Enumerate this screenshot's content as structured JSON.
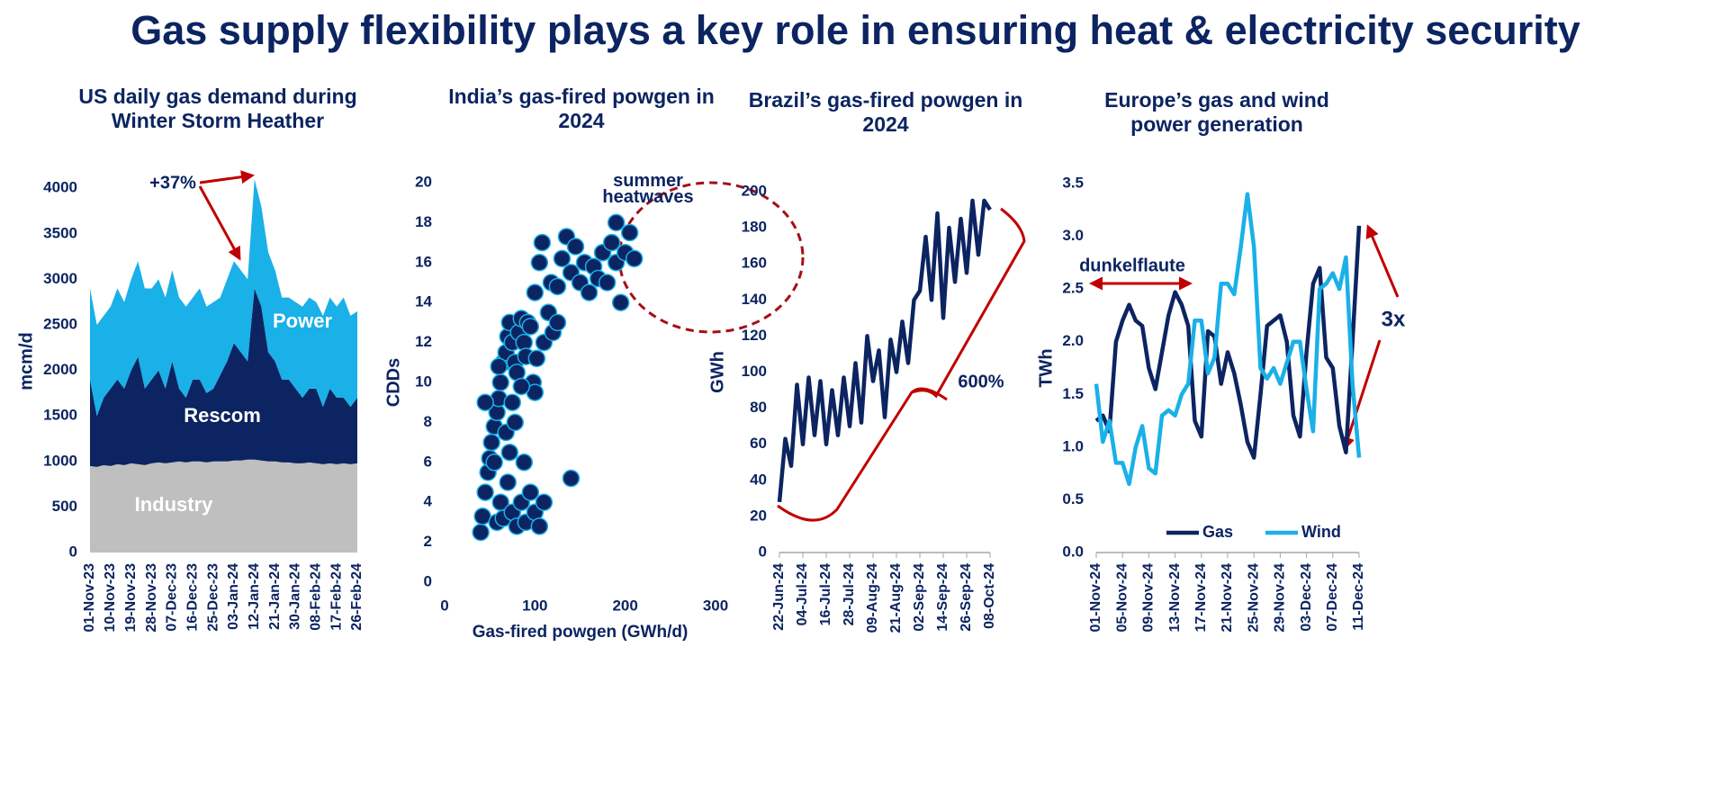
{
  "title": "Gas supply flexibility plays a key role in ensuring heat & electricity security",
  "chart_data": [
    {
      "type": "area",
      "title": "US daily gas demand during Winter Storm Heather",
      "y_label": "mcm/d",
      "categories": [
        "01-Nov-23",
        null,
        null,
        "10-Nov-23",
        null,
        null,
        "19-Nov-23",
        null,
        null,
        "28-Nov-23",
        null,
        null,
        "07-Dec-23",
        null,
        null,
        "16-Dec-23",
        null,
        null,
        "25-Dec-23",
        null,
        null,
        "03-Jan-24",
        null,
        null,
        "12-Jan-24",
        null,
        null,
        "21-Jan-24",
        null,
        null,
        "30-Jan-24",
        null,
        null,
        "08-Feb-24",
        null,
        null,
        "17-Feb-24",
        null,
        null,
        "26-Feb-24"
      ],
      "series": [
        {
          "name": "Industry",
          "color": "#bfbfbf",
          "values": [
            950,
            940,
            960,
            950,
            970,
            960,
            980,
            970,
            960,
            980,
            990,
            980,
            990,
            1000,
            990,
            1000,
            1000,
            990,
            1000,
            1000,
            1000,
            1010,
            1010,
            1020,
            1020,
            1010,
            1000,
            1000,
            990,
            990,
            980,
            980,
            990,
            980,
            970,
            980,
            970,
            980,
            970,
            980
          ]
        },
        {
          "name": "Rescom",
          "color": "#0c2461",
          "values": [
            950,
            560,
            740,
            850,
            930,
            840,
            1020,
            1180,
            840,
            920,
            1010,
            820,
            1110,
            800,
            710,
            900,
            900,
            760,
            800,
            950,
            1100,
            1290,
            1190,
            1080,
            1880,
            1690,
            1200,
            1100,
            910,
            910,
            820,
            720,
            810,
            820,
            630,
            820,
            730,
            720,
            630,
            720
          ]
        },
        {
          "name": "Power",
          "color": "#1ab0e8",
          "values": [
            1000,
            1000,
            900,
            900,
            1000,
            950,
            1000,
            1050,
            1100,
            1000,
            1000,
            1000,
            1000,
            1000,
            1000,
            900,
            1000,
            950,
            950,
            850,
            900,
            900,
            900,
            900,
            1200,
            1100,
            1100,
            1000,
            900,
            900,
            950,
            1000,
            1000,
            950,
            1000,
            1000,
            1000,
            1100,
            1000,
            950
          ]
        }
      ],
      "annotations": [
        "+37%"
      ],
      "ylim": [
        0,
        4200
      ],
      "yticks": [
        0,
        500,
        1000,
        1500,
        2000,
        2500,
        3000,
        3500,
        4000
      ]
    },
    {
      "type": "scatter",
      "title": "India’s gas-fired powgen in 2024",
      "x_label": "Gas-fired powgen (GWh/d)",
      "y_label": "CDDs",
      "color": "#0c2461",
      "edge_color": "#1ab0e8",
      "x": [
        40,
        42,
        45,
        48,
        50,
        52,
        55,
        58,
        60,
        45,
        62,
        65,
        68,
        70,
        72,
        75,
        78,
        80,
        82,
        85,
        88,
        90,
        92,
        95,
        98,
        100,
        58,
        62,
        65,
        70,
        75,
        80,
        85,
        90,
        95,
        100,
        105,
        55,
        68,
        72,
        78,
        60,
        85,
        102,
        110,
        115,
        120,
        125,
        100,
        105,
        108,
        118,
        125,
        130,
        135,
        140,
        145,
        150,
        155,
        160,
        165,
        170,
        175,
        180,
        185,
        190,
        195,
        200,
        205,
        210,
        190,
        140,
        110,
        88,
        75
      ],
      "values": [
        2.5,
        3.3,
        4.5,
        5.5,
        6.2,
        7,
        7.8,
        8.5,
        9.2,
        9,
        10,
        11,
        11.5,
        12.3,
        13,
        12,
        11,
        10.5,
        12.5,
        13.2,
        12,
        11.3,
        13,
        12.8,
        10,
        9.5,
        3,
        4,
        3.2,
        5,
        3.5,
        2.8,
        4,
        3,
        4.5,
        3.5,
        2.8,
        6,
        7.5,
        6.5,
        8,
        10.8,
        9.8,
        11.2,
        12,
        13.5,
        12.5,
        13,
        14.5,
        16,
        17,
        15,
        14.8,
        16.2,
        17.3,
        15.5,
        16.8,
        15,
        16,
        14.5,
        15.8,
        15.2,
        16.5,
        15,
        17,
        16,
        14,
        16.5,
        17.5,
        16.2,
        18,
        5.2,
        4,
        6,
        9
      ],
      "annotations": [
        "summer heatwaves"
      ],
      "xlim": [
        0,
        300
      ],
      "xticks": [
        0,
        100,
        200,
        300
      ],
      "ylim": [
        0,
        20
      ],
      "yticks": [
        0,
        2,
        4,
        6,
        8,
        10,
        12,
        14,
        16,
        18,
        20
      ]
    },
    {
      "type": "line",
      "title": "Brazil’s gas-fired powgen in 2024",
      "y_label": "GWh",
      "categories": [
        "22-Jun-24",
        null,
        null,
        null,
        "04-Jul-24",
        null,
        null,
        null,
        "16-Jul-24",
        null,
        null,
        null,
        "28-Jul-24",
        null,
        null,
        null,
        "09-Aug-24",
        null,
        null,
        null,
        "21-Aug-24",
        null,
        null,
        null,
        "02-Sep-24",
        null,
        null,
        null,
        "14-Sep-24",
        null,
        null,
        null,
        "26-Sep-24",
        null,
        null,
        null,
        "08-Oct-24"
      ],
      "series": [
        {
          "name": "Gas-fired powgen",
          "color": "#0c2461",
          "values": [
            28,
            63,
            48,
            93,
            60,
            97,
            65,
            95,
            60,
            90,
            65,
            97,
            70,
            105,
            72,
            120,
            95,
            112,
            75,
            118,
            100,
            128,
            105,
            140,
            145,
            175,
            140,
            188,
            130,
            180,
            150,
            185,
            155,
            195,
            165,
            195,
            190
          ]
        }
      ],
      "annotations": [
        "600%"
      ],
      "ylim": [
        0,
        200
      ],
      "yticks": [
        0,
        20,
        40,
        60,
        80,
        100,
        120,
        140,
        160,
        180,
        200
      ]
    },
    {
      "type": "line",
      "title": "Europe’s gas and wind power generation",
      "y_label": "TWh",
      "legend": "bottom",
      "categories": [
        "01-Nov-24",
        null,
        null,
        null,
        "05-Nov-24",
        null,
        null,
        null,
        "09-Nov-24",
        null,
        null,
        null,
        "13-Nov-24",
        null,
        null,
        null,
        "17-Nov-24",
        null,
        null,
        null,
        "21-Nov-24",
        null,
        null,
        null,
        "25-Nov-24",
        null,
        null,
        null,
        "29-Nov-24",
        null,
        null,
        null,
        "03-Dec-24",
        null,
        null,
        null,
        "07-Dec-24",
        null,
        null,
        null,
        "11-Dec-24"
      ],
      "series": [
        {
          "name": "Gas",
          "color": "#0c2461",
          "values": [
            1.25,
            1.3,
            1.15,
            2.0,
            2.2,
            2.35,
            2.2,
            2.15,
            1.75,
            1.55,
            1.9,
            2.25,
            2.47,
            2.35,
            2.15,
            1.25,
            1.1,
            2.1,
            2.05,
            1.6,
            1.9,
            1.7,
            1.4,
            1.05,
            0.9,
            1.5,
            2.15,
            2.2,
            2.25,
            2.0,
            1.3,
            1.1,
            1.9,
            2.55,
            2.7,
            1.85,
            1.75,
            1.2,
            0.95,
            2.0,
            3.1
          ]
        },
        {
          "name": "Wind",
          "color": "#1ab0e8",
          "values": [
            1.6,
            1.05,
            1.25,
            0.85,
            0.85,
            0.65,
            1.0,
            1.2,
            0.8,
            0.75,
            1.3,
            1.35,
            1.3,
            1.5,
            1.6,
            2.2,
            2.2,
            1.7,
            1.85,
            2.55,
            2.55,
            2.45,
            2.9,
            3.4,
            2.9,
            1.75,
            1.65,
            1.75,
            1.6,
            1.8,
            2.0,
            2.0,
            1.55,
            1.15,
            2.5,
            2.55,
            2.65,
            2.5,
            2.8,
            1.6,
            0.9
          ]
        }
      ],
      "annotations": [
        "dunkelflaute",
        "3x"
      ],
      "ylim": [
        0,
        3.5
      ],
      "yticks": [
        {
          "value": 0,
          "label": "0.0"
        },
        0.5,
        {
          "value": 1,
          "label": "1.0"
        },
        1.5,
        {
          "value": 2,
          "label": "2.0"
        },
        2.5,
        {
          "value": 3,
          "label": "3.0"
        },
        3.5
      ]
    }
  ]
}
